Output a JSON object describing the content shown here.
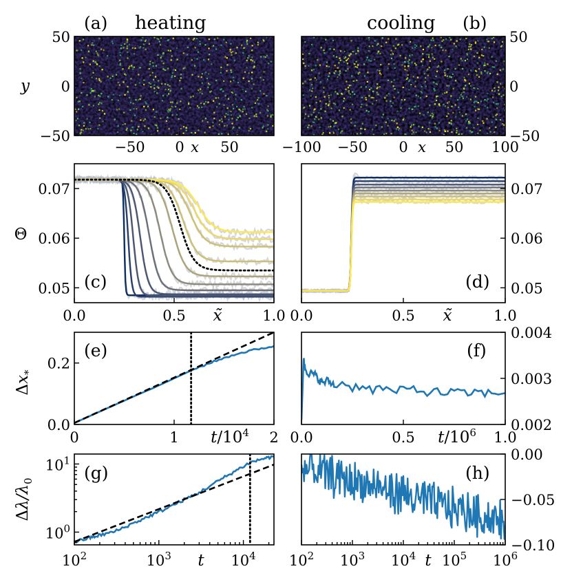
{
  "colors": {
    "series_main": "#1f77b4",
    "dashed": "#000000",
    "dotted": "#000000",
    "colormap": [
      "#0d2e63",
      "#2a3f6b",
      "#4a5674",
      "#6b6f78",
      "#8c8a7c",
      "#aca57a",
      "#cdbf73",
      "#ecd86a",
      "#fde94d"
    ]
  },
  "chart_data": [
    {
      "id": "a",
      "panel_label": "(a)",
      "title": "heating",
      "type": "heatmap",
      "xlabel": "x",
      "ylabel": "y",
      "xlim": [
        -100,
        100
      ],
      "ylim": [
        -50,
        50
      ],
      "xticks": [
        "−50",
        "0",
        "50"
      ],
      "yticks": [
        "50",
        "0",
        "−50"
      ],
      "colormap": "viridis"
    },
    {
      "id": "b",
      "panel_label": "(b)",
      "title": "cooling",
      "type": "heatmap",
      "xlabel": "x",
      "ylabel": "",
      "xlim": [
        -100,
        100
      ],
      "ylim": [
        -50,
        50
      ],
      "xticks": [
        "−100",
        "−50",
        "0",
        "50",
        "100"
      ],
      "yticks": [
        "50",
        "0",
        "−50"
      ],
      "colormap": "viridis"
    },
    {
      "id": "c",
      "panel_label": "(c)",
      "type": "line",
      "xlabel": "x̃",
      "ylabel": "Θ",
      "xlim": [
        0,
        1
      ],
      "ylim": [
        0.047,
        0.075
      ],
      "xticks": [
        "0.0",
        "0.5",
        "1.0"
      ],
      "yticks": [
        "0.07",
        "0.06",
        "0.05"
      ],
      "profile": "step_down",
      "start_value": 0.0718,
      "curves": [
        {
          "front": 0.25,
          "width": 0.006,
          "final": 0.0485
        },
        {
          "front": 0.27,
          "width": 0.018,
          "final": 0.0482
        },
        {
          "front": 0.295,
          "width": 0.028,
          "final": 0.0484
        },
        {
          "front": 0.33,
          "width": 0.04,
          "final": 0.0487
        },
        {
          "front": 0.375,
          "width": 0.05,
          "final": 0.0495
        },
        {
          "front": 0.43,
          "width": 0.058,
          "final": 0.0507
        },
        {
          "front": 0.49,
          "width": 0.065,
          "final": 0.0523
        },
        {
          "front": 0.545,
          "width": 0.07,
          "final": 0.0553
        },
        {
          "front": 0.58,
          "width": 0.074,
          "final": 0.0583
        },
        {
          "front": 0.6,
          "width": 0.077,
          "final": 0.0598
        },
        {
          "front": 0.62,
          "width": 0.08,
          "final": 0.0612
        }
      ],
      "dotted_curve": {
        "front": 0.53,
        "width": 0.07,
        "final": 0.0535
      }
    },
    {
      "id": "d",
      "panel_label": "(d)",
      "type": "line",
      "xlabel": "x̃",
      "ylabel": "",
      "xlim": [
        0,
        1
      ],
      "ylim": [
        0.047,
        0.075
      ],
      "xticks": [
        "0.0",
        "0.5",
        "1.0"
      ],
      "yticks": [
        "0.07",
        "0.06",
        "0.05"
      ],
      "profile": "step_up",
      "start_value": 0.0494,
      "front": 0.245,
      "plateaus": [
        0.0722,
        0.0715,
        0.0708,
        0.0702,
        0.0696,
        0.069,
        0.0684,
        0.0678,
        0.0673
      ]
    },
    {
      "id": "e",
      "panel_label": "(e)",
      "type": "line",
      "xlabel": "t/10^4",
      "ylabel": "Δx*",
      "xlim": [
        0,
        2
      ],
      "ylim": [
        0,
        0.3
      ],
      "xticks": [
        "0",
        "1",
        "2"
      ],
      "yticks": [
        "0.2",
        "0.0"
      ],
      "series": [
        {
          "x": [
            0,
            0.2,
            0.4,
            0.6,
            0.8,
            1.0,
            1.2,
            1.4,
            1.6,
            1.8,
            2.0
          ],
          "y": [
            0.005,
            0.034,
            0.063,
            0.092,
            0.12,
            0.15,
            0.18,
            0.205,
            0.227,
            0.243,
            0.255
          ]
        }
      ],
      "dashed": {
        "x": [
          0,
          2
        ],
        "y": [
          0.005,
          0.3
        ]
      },
      "vline": 1.17
    },
    {
      "id": "f",
      "panel_label": "(f)",
      "type": "line",
      "xlabel": "t/10^6",
      "ylabel": "",
      "xlim": [
        0,
        1
      ],
      "ylim": [
        0.002,
        0.004
      ],
      "xticks": [
        "0.0",
        "0.5",
        "1.0"
      ],
      "yticks": [
        "0.004",
        "0.003",
        "0.002"
      ],
      "series": [
        {
          "x": [
            0.0,
            0.01,
            0.02,
            0.04,
            0.06,
            0.08,
            0.1,
            0.13,
            0.16,
            0.2,
            0.25,
            0.3,
            0.35,
            0.4,
            0.45,
            0.5,
            0.55,
            0.6,
            0.65,
            0.7,
            0.75,
            0.8,
            0.85,
            0.9,
            0.95,
            1.0
          ],
          "y": [
            0.0021,
            0.0034,
            0.0032,
            0.0031,
            0.0031,
            0.003,
            0.0029,
            0.00295,
            0.00285,
            0.0029,
            0.0028,
            0.00285,
            0.00275,
            0.0028,
            0.0027,
            0.00275,
            0.00278,
            0.0027,
            0.00272,
            0.00268,
            0.00272,
            0.00266,
            0.0027,
            0.00268,
            0.00268,
            0.00268
          ]
        }
      ]
    },
    {
      "id": "g",
      "panel_label": "(g)",
      "type": "line",
      "xlabel": "t",
      "ylabel": "Δλ/λ0",
      "xscale": "log",
      "yscale": "log",
      "xlim": [
        100,
        23000
      ],
      "ylim": [
        0.65,
        14
      ],
      "xticks": [
        {
          "v": 100,
          "m": "10",
          "e": "2"
        },
        {
          "v": 1000,
          "m": "10",
          "e": "3"
        },
        {
          "v": 10000,
          "m": "10",
          "e": "4"
        }
      ],
      "yticks": [
        {
          "v": 10,
          "m": "10",
          "e": "1"
        },
        {
          "v": 1,
          "m": "10",
          "e": "0"
        }
      ],
      "series": [
        {
          "x": [
            100,
            150,
            200,
            300,
            500,
            800,
            1200,
            2000,
            3000,
            5000,
            8000,
            12000,
            18000,
            23000
          ],
          "y": [
            0.72,
            0.82,
            0.9,
            1.02,
            1.35,
            1.75,
            2.2,
            3.0,
            3.8,
            5.6,
            7.9,
            10.5,
            12.2,
            12.8
          ]
        }
      ],
      "dashed": {
        "x": [
          100,
          23000
        ],
        "y": [
          0.72,
          9.8
        ]
      },
      "vline": 12000
    },
    {
      "id": "h",
      "panel_label": "(h)",
      "type": "line",
      "xlabel": "t",
      "ylabel": "",
      "xscale": "log",
      "xlim": [
        100,
        1000000
      ],
      "ylim": [
        -0.1,
        0.0
      ],
      "xticks": [
        {
          "v": 100,
          "m": "10",
          "e": "2"
        },
        {
          "v": 1000,
          "m": "10",
          "e": "3"
        },
        {
          "v": 10000,
          "m": "10",
          "e": "4"
        },
        {
          "v": 100000,
          "m": "10",
          "e": "5"
        },
        {
          "v": 1000000,
          "m": "10",
          "e": "6"
        }
      ],
      "yticks": [
        "0.00",
        "−0.05",
        "−0.10"
      ],
      "trend": {
        "x": [
          100,
          1000000
        ],
        "y": [
          -0.015,
          -0.075
        ]
      },
      "noise": 0.02
    }
  ]
}
